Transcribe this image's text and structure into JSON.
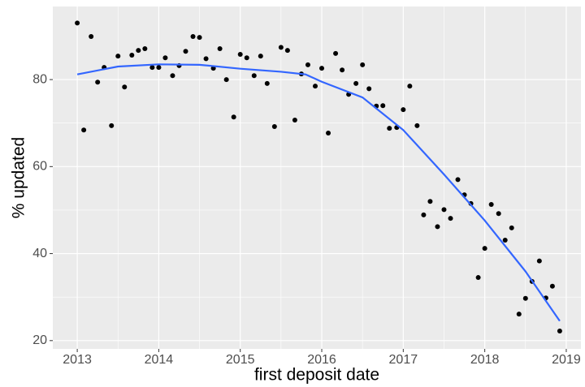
{
  "chart_data": {
    "type": "scatter",
    "xlabel": "first deposit date",
    "ylabel": "% updated",
    "xlim": [
      2012.7,
      2019.18
    ],
    "ylim": [
      18.1,
      96.8
    ],
    "xticks": [
      2013,
      2014,
      2015,
      2016,
      2017,
      2018,
      2019
    ],
    "yticks": [
      20,
      40,
      60,
      80
    ],
    "grid": true,
    "minor_grid": true,
    "panel_color": "#ebebeb",
    "series": [
      {
        "color": "#000000",
        "kind": "points",
        "x": [
          2013.0,
          2013.08,
          2013.17,
          2013.25,
          2013.33,
          2013.42,
          2013.5,
          2013.58,
          2013.67,
          2013.75,
          2013.83,
          2013.92,
          2014.0,
          2014.08,
          2014.17,
          2014.25,
          2014.33,
          2014.42,
          2014.5,
          2014.58,
          2014.67,
          2014.75,
          2014.83,
          2014.92,
          2015.0,
          2015.08,
          2015.17,
          2015.25,
          2015.33,
          2015.42,
          2015.5,
          2015.58,
          2015.67,
          2015.75,
          2015.83,
          2015.92,
          2016.0,
          2016.08,
          2016.17,
          2016.25,
          2016.33,
          2016.42,
          2016.5,
          2016.58,
          2016.67,
          2016.75,
          2016.83,
          2016.92,
          2017.0,
          2017.08,
          2017.17,
          2017.25,
          2017.33,
          2017.42,
          2017.5,
          2017.58,
          2017.67,
          2017.75,
          2017.83,
          2017.92,
          2018.0,
          2018.08,
          2018.17,
          2018.25,
          2018.33,
          2018.42,
          2018.5,
          2018.58,
          2018.67,
          2018.75,
          2018.83,
          2018.92
        ],
        "values": [
          93,
          68.4,
          89.9,
          79.4,
          82.8,
          69.4,
          85.4,
          78.3,
          85.6,
          86.7,
          87.1,
          82.8,
          82.8,
          85.0,
          80.9,
          83.2,
          86.5,
          89.9,
          89.7,
          84.8,
          82.6,
          87.1,
          80.0,
          71.4,
          85.8,
          85.0,
          80.9,
          85.4,
          79.1,
          69.2,
          87.4,
          86.7,
          70.7,
          81.3,
          83.4,
          78.5,
          82.6,
          67.7,
          86.0,
          82.2,
          76.6,
          79.1,
          83.4,
          77.9,
          73.9,
          74.0,
          68.8,
          69.0,
          73.1,
          78.5,
          69.4,
          48.9,
          52.0,
          46.2,
          50.1,
          48.1,
          57.0,
          53.5,
          51.5,
          34.5,
          41.2,
          51.3,
          49.2,
          43.1,
          45.9,
          26.1,
          29.7,
          33.6,
          38.3,
          29.8,
          32.5,
          22.2
        ]
      },
      {
        "color": "#3366ff",
        "kind": "line",
        "x": [
          2013.0,
          2013.5,
          2014.0,
          2014.5,
          2015.0,
          2015.5,
          2015.8,
          2016.0,
          2016.5,
          2017.0,
          2017.5,
          2018.0,
          2018.5,
          2018.92
        ],
        "values": [
          81.2,
          83.0,
          83.5,
          83.4,
          82.5,
          81.8,
          81.2,
          79.5,
          75.9,
          68.4,
          58.2,
          47.6,
          35.9,
          24.5
        ]
      }
    ]
  }
}
